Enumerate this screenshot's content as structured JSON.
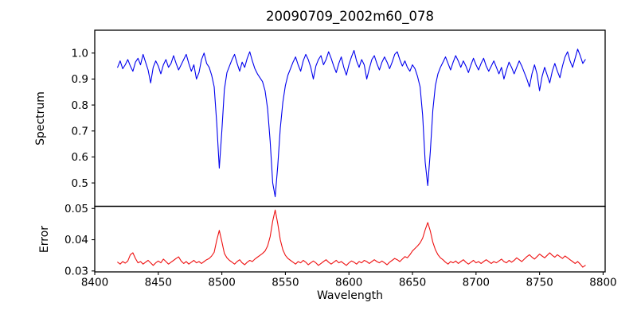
{
  "title": "20090709_2002m60_078",
  "chart_data": {
    "type": "line",
    "title": "20090709_2002m60_078",
    "xlabel": "Wavelength",
    "grid": false,
    "legend": "none",
    "xlim": [
      8400,
      8801.6
    ],
    "xticks": [
      8400,
      8450,
      8500,
      8550,
      8600,
      8650,
      8700,
      8750,
      8800
    ],
    "xtick_labels": [
      "8400",
      "8450",
      "8500",
      "8550",
      "8600",
      "8650",
      "8700",
      "8750",
      "8800"
    ],
    "x_start": 8418,
    "x_step": 2,
    "panels": {
      "spectrum": {
        "ylabel": "Spectrum",
        "ylim": [
          0.41,
          1.088
        ],
        "yticks": [
          1.0,
          0.9,
          0.8,
          0.7,
          0.6,
          0.5
        ],
        "ytick_labels": [
          "1.0",
          "0.9",
          "0.8",
          "0.7",
          "0.6",
          "0.5"
        ]
      },
      "error": {
        "ylabel": "Error",
        "ylim": [
          0.0297,
          0.0507
        ],
        "yticks": [
          0.05,
          0.04,
          0.03
        ],
        "ytick_labels": [
          "0.05",
          "0.04",
          "0.03"
        ]
      }
    },
    "annotations": {
      "absorption_line_centers": [
        8498,
        8542,
        8662
      ],
      "absorption_line_depths": [
        0.557,
        0.447,
        0.49
      ],
      "error_peak_values": [
        0.043,
        0.0495,
        0.0455
      ]
    },
    "series": [
      {
        "name": "Spectrum",
        "panel": "spectrum",
        "color": "#0000ee",
        "values": [
          0.945,
          0.97,
          0.94,
          0.955,
          0.975,
          0.95,
          0.93,
          0.965,
          0.98,
          0.955,
          0.995,
          0.965,
          0.935,
          0.885,
          0.945,
          0.97,
          0.95,
          0.92,
          0.955,
          0.975,
          0.945,
          0.96,
          0.99,
          0.96,
          0.935,
          0.955,
          0.975,
          0.995,
          0.96,
          0.93,
          0.955,
          0.9,
          0.925,
          0.975,
          1.0,
          0.96,
          0.945,
          0.915,
          0.87,
          0.73,
          0.557,
          0.7,
          0.86,
          0.925,
          0.95,
          0.975,
          0.995,
          0.96,
          0.93,
          0.965,
          0.945,
          0.98,
          1.005,
          0.97,
          0.94,
          0.92,
          0.905,
          0.89,
          0.855,
          0.785,
          0.66,
          0.5,
          0.447,
          0.565,
          0.71,
          0.81,
          0.875,
          0.915,
          0.94,
          0.965,
          0.985,
          0.955,
          0.93,
          0.97,
          0.995,
          0.975,
          0.945,
          0.9,
          0.95,
          0.975,
          0.99,
          0.955,
          0.975,
          1.005,
          0.98,
          0.95,
          0.925,
          0.96,
          0.985,
          0.945,
          0.915,
          0.955,
          0.985,
          1.01,
          0.97,
          0.945,
          0.975,
          0.955,
          0.9,
          0.94,
          0.975,
          0.99,
          0.96,
          0.935,
          0.965,
          0.985,
          0.965,
          0.94,
          0.965,
          0.995,
          1.005,
          0.975,
          0.95,
          0.97,
          0.945,
          0.93,
          0.955,
          0.94,
          0.91,
          0.87,
          0.76,
          0.58,
          0.49,
          0.62,
          0.78,
          0.875,
          0.92,
          0.945,
          0.965,
          0.985,
          0.96,
          0.935,
          0.965,
          0.99,
          0.97,
          0.945,
          0.97,
          0.95,
          0.925,
          0.955,
          0.98,
          0.955,
          0.935,
          0.96,
          0.98,
          0.95,
          0.93,
          0.95,
          0.97,
          0.945,
          0.92,
          0.945,
          0.9,
          0.935,
          0.965,
          0.945,
          0.92,
          0.945,
          0.97,
          0.95,
          0.925,
          0.9,
          0.87,
          0.92,
          0.955,
          0.92,
          0.855,
          0.91,
          0.945,
          0.915,
          0.885,
          0.93,
          0.96,
          0.93,
          0.905,
          0.95,
          0.985,
          1.005,
          0.97,
          0.945,
          0.98,
          1.015,
          0.99,
          0.96,
          0.975
        ]
      },
      {
        "name": "Error",
        "panel": "error",
        "color": "#ee1111",
        "values": [
          0.0328,
          0.0322,
          0.033,
          0.0325,
          0.0332,
          0.0352,
          0.0358,
          0.034,
          0.0326,
          0.033,
          0.0322,
          0.0328,
          0.0334,
          0.0326,
          0.0318,
          0.0326,
          0.0332,
          0.0326,
          0.0338,
          0.033,
          0.0322,
          0.0328,
          0.0334,
          0.034,
          0.0345,
          0.0332,
          0.0324,
          0.033,
          0.0322,
          0.0328,
          0.0334,
          0.0326,
          0.033,
          0.0324,
          0.033,
          0.0336,
          0.034,
          0.0348,
          0.036,
          0.0398,
          0.043,
          0.0394,
          0.0356,
          0.0342,
          0.0334,
          0.0328,
          0.0322,
          0.033,
          0.0336,
          0.0326,
          0.032,
          0.0328,
          0.0334,
          0.033,
          0.0338,
          0.0344,
          0.035,
          0.0356,
          0.0364,
          0.038,
          0.041,
          0.046,
          0.0495,
          0.0452,
          0.04,
          0.0368,
          0.035,
          0.034,
          0.0334,
          0.0328,
          0.0322,
          0.033,
          0.0326,
          0.0334,
          0.0328,
          0.032,
          0.0326,
          0.0332,
          0.0326,
          0.0318,
          0.0324,
          0.033,
          0.0336,
          0.0328,
          0.0322,
          0.0328,
          0.0334,
          0.0326,
          0.033,
          0.0324,
          0.0318,
          0.0326,
          0.0332,
          0.0328,
          0.0322,
          0.033,
          0.0326,
          0.0334,
          0.033,
          0.0324,
          0.033,
          0.0336,
          0.033,
          0.0326,
          0.0332,
          0.0326,
          0.032,
          0.0328,
          0.0334,
          0.034,
          0.0336,
          0.033,
          0.0338,
          0.0346,
          0.0342,
          0.0352,
          0.0364,
          0.0372,
          0.038,
          0.039,
          0.0405,
          0.0432,
          0.0455,
          0.0428,
          0.0392,
          0.0368,
          0.0352,
          0.0342,
          0.0336,
          0.0328,
          0.0322,
          0.033,
          0.0326,
          0.0332,
          0.0324,
          0.033,
          0.0336,
          0.0328,
          0.0322,
          0.0328,
          0.0334,
          0.0326,
          0.033,
          0.0324,
          0.033,
          0.0336,
          0.033,
          0.0324,
          0.033,
          0.0326,
          0.0332,
          0.0338,
          0.033,
          0.0326,
          0.0334,
          0.0328,
          0.0334,
          0.0342,
          0.0336,
          0.033,
          0.0338,
          0.0346,
          0.0352,
          0.0344,
          0.0338,
          0.0346,
          0.0354,
          0.0348,
          0.0342,
          0.035,
          0.0358,
          0.035,
          0.0344,
          0.0352,
          0.0346,
          0.034,
          0.0348,
          0.0342,
          0.0336,
          0.033,
          0.0324,
          0.033,
          0.0322,
          0.0312,
          0.0318
        ]
      }
    ]
  }
}
